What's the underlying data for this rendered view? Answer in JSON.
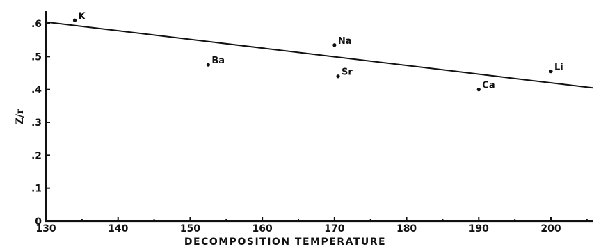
{
  "chart_data": {
    "type": "scatter",
    "xlabel": "DECOMPOSITION TEMPERATURE",
    "ylabel": "Z/r",
    "xlim": [
      130,
      206
    ],
    "ylim": [
      0,
      0.65
    ],
    "x_ticks": [
      130,
      140,
      150,
      160,
      170,
      180,
      190,
      200
    ],
    "x_tick_labels": [
      "130",
      "140",
      "150",
      "160",
      "170",
      "180",
      "190",
      "200"
    ],
    "y_ticks": [
      0,
      0.1,
      0.2,
      0.3,
      0.4,
      0.5,
      0.6
    ],
    "y_tick_labels": [
      "0",
      ".1",
      ".2",
      ".3",
      ".4",
      ".5",
      ".6"
    ],
    "points": [
      {
        "label": "K",
        "x": 134,
        "y": 0.61
      },
      {
        "label": "Ba",
        "x": 152.5,
        "y": 0.475
      },
      {
        "label": "Na",
        "x": 170,
        "y": 0.535
      },
      {
        "label": "Sr",
        "x": 170.5,
        "y": 0.44
      },
      {
        "label": "Ca",
        "x": 190,
        "y": 0.4
      },
      {
        "label": "Li",
        "x": 200,
        "y": 0.455
      }
    ],
    "trendline": {
      "x": [
        130,
        206
      ],
      "y": [
        0.605,
        0.405
      ]
    },
    "grid": false,
    "legend": "none"
  }
}
